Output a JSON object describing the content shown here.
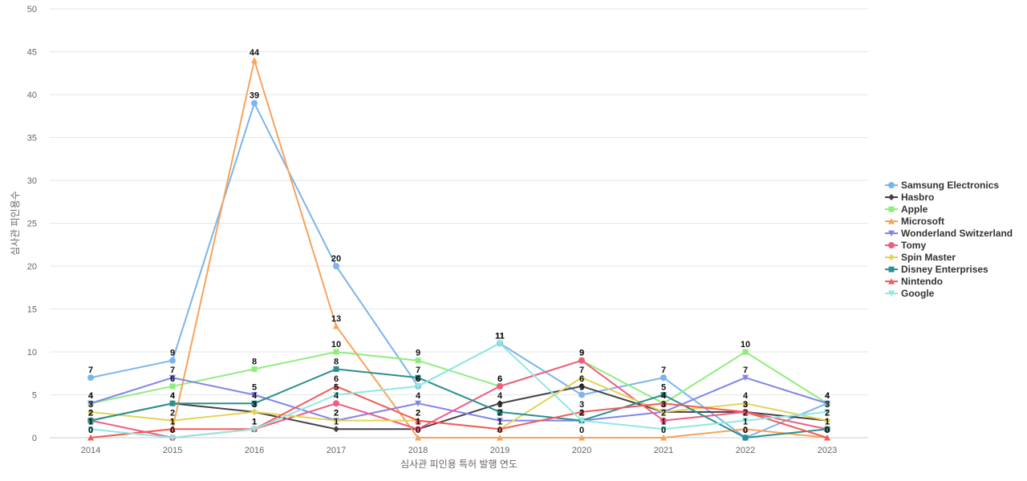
{
  "chart_data": {
    "type": "line",
    "title": "",
    "xlabel": "심사관 피인용 특허 발행 연도",
    "ylabel": "심사관 피인용수",
    "categories": [
      "2014",
      "2015",
      "2016",
      "2017",
      "2018",
      "2019",
      "2020",
      "2021",
      "2022",
      "2023"
    ],
    "ylim": [
      0,
      50
    ],
    "yticks": [
      0,
      5,
      10,
      15,
      20,
      25,
      30,
      35,
      40,
      45,
      50
    ],
    "grid": true,
    "legend_position": "right",
    "series": [
      {
        "name": "Samsung Electronics",
        "color": "#7cb5ec",
        "marker": "circle",
        "values": [
          7,
          9,
          39,
          20,
          6,
          11,
          5,
          7,
          0,
          4
        ]
      },
      {
        "name": "Hasbro",
        "color": "#434348",
        "marker": "diamond",
        "values": [
          2,
          4,
          3,
          1,
          1,
          4,
          6,
          3,
          3,
          2
        ]
      },
      {
        "name": "Apple",
        "color": "#90ed7d",
        "marker": "square",
        "values": [
          4,
          6,
          8,
          10,
          9,
          6,
          9,
          4,
          10,
          4
        ]
      },
      {
        "name": "Microsoft",
        "color": "#f7a35c",
        "marker": "triangle",
        "values": [
          0,
          1,
          44,
          13,
          0,
          0,
          0,
          0,
          1,
          0
        ]
      },
      {
        "name": "Wonderland Switzerland",
        "color": "#8085e9",
        "marker": "triangle-down",
        "values": [
          4,
          7,
          5,
          2,
          4,
          2,
          2,
          3,
          7,
          4
        ]
      },
      {
        "name": "Tomy",
        "color": "#f15c80",
        "marker": "circle",
        "values": [
          2,
          0,
          1,
          4,
          1,
          6,
          9,
          2,
          3,
          1
        ]
      },
      {
        "name": "Spin Master",
        "color": "#e4d354",
        "marker": "diamond",
        "values": [
          3,
          2,
          3,
          2,
          2,
          1,
          7,
          3,
          4,
          2
        ]
      },
      {
        "name": "Disney Enterprises",
        "color": "#2b908f",
        "marker": "square",
        "values": [
          2,
          4,
          4,
          8,
          7,
          3,
          2,
          5,
          0,
          1
        ]
      },
      {
        "name": "Nintendo",
        "color": "#f45b5b",
        "marker": "triangle",
        "values": [
          0,
          1,
          1,
          6,
          2,
          1,
          3,
          4,
          3,
          0
        ]
      },
      {
        "name": "Google",
        "color": "#91e8e1",
        "marker": "triangle-down",
        "values": [
          1,
          0,
          1,
          5,
          6,
          11,
          2,
          1,
          2,
          3
        ]
      }
    ]
  }
}
